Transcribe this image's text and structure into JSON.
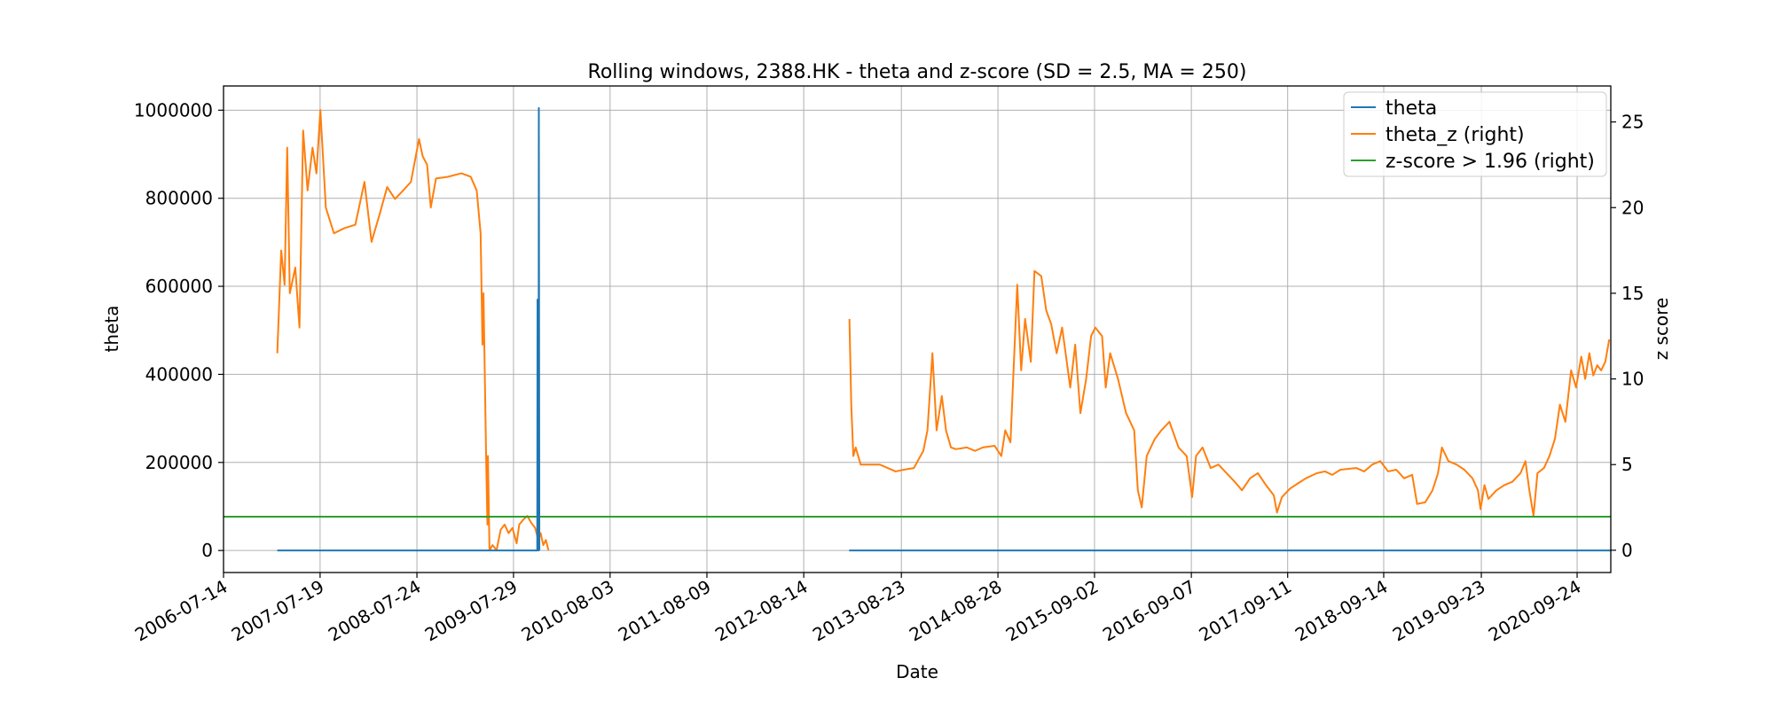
{
  "chart_data": {
    "type": "line",
    "title": "Rolling windows, 2388.HK - theta and z-score (SD = 2.5, MA = 250)",
    "xlabel": "Date",
    "ylabel": "theta",
    "y2label": "z score",
    "grid": true,
    "legend_position": "top-right",
    "xlim": [
      "2006-07-14",
      "2021-01-31"
    ],
    "ylim": [
      -50000,
      1055000
    ],
    "y2lim": [
      -1.3,
      27.1
    ],
    "x_ticks": [
      "2006-07-14",
      "2007-07-19",
      "2008-07-24",
      "2009-07-29",
      "2010-08-03",
      "2011-08-09",
      "2012-08-14",
      "2013-08-23",
      "2014-08-28",
      "2015-09-02",
      "2016-09-07",
      "2017-09-11",
      "2018-09-14",
      "2019-09-23",
      "2020-09-24"
    ],
    "y_ticks": [
      0,
      200000,
      400000,
      600000,
      800000,
      1000000
    ],
    "y2_ticks": [
      0,
      5,
      10,
      15,
      20,
      25
    ],
    "y_tick_labels": [
      "0",
      "200000",
      "400000",
      "600000",
      "800000",
      "1000000"
    ],
    "y2_tick_labels": [
      "0",
      "5",
      "10",
      "15",
      "20",
      "25"
    ],
    "series": [
      {
        "name": "theta",
        "axis": "left",
        "color": "#1f77b4",
        "segments": [
          [
            [
              "2007-02-05",
              0
            ],
            [
              "2009-10-28",
              0
            ],
            [
              "2009-10-29",
              570000
            ],
            [
              "2009-11-02",
              0
            ],
            [
              "2009-11-03",
              1005000
            ],
            [
              "2009-11-05",
              0
            ]
          ],
          [
            [
              "2013-02-04",
              0
            ],
            [
              "2021-01-31",
              0
            ]
          ]
        ]
      },
      {
        "name": "theta_z (right)",
        "axis": "right",
        "color": "#ff7f0e",
        "segments": [
          [
            [
              "2007-02-05",
              11.5
            ],
            [
              "2007-02-20",
              17.5
            ],
            [
              "2007-03-05",
              15.5
            ],
            [
              "2007-03-15",
              23.5
            ],
            [
              "2007-03-25",
              15
            ],
            [
              "2007-04-15",
              16.5
            ],
            [
              "2007-05-01",
              13
            ],
            [
              "2007-05-15",
              24.5
            ],
            [
              "2007-06-01",
              21
            ],
            [
              "2007-06-20",
              23.5
            ],
            [
              "2007-07-05",
              22
            ],
            [
              "2007-07-20",
              25.7
            ],
            [
              "2007-08-10",
              20
            ],
            [
              "2007-09-10",
              18.5
            ],
            [
              "2007-10-20",
              18.8
            ],
            [
              "2007-12-01",
              19
            ],
            [
              "2008-01-05",
              21.5
            ],
            [
              "2008-02-01",
              18
            ],
            [
              "2008-03-01",
              19.5
            ],
            [
              "2008-04-01",
              21.2
            ],
            [
              "2008-05-01",
              20.5
            ],
            [
              "2008-06-01",
              21
            ],
            [
              "2008-07-01",
              21.5
            ],
            [
              "2008-08-01",
              24
            ],
            [
              "2008-08-15",
              23
            ],
            [
              "2008-09-01",
              22.5
            ],
            [
              "2008-09-15",
              20
            ],
            [
              "2008-10-05",
              21.7
            ],
            [
              "2008-11-20",
              21.8
            ],
            [
              "2009-01-10",
              22
            ],
            [
              "2009-02-15",
              21.8
            ],
            [
              "2009-03-10",
              21
            ],
            [
              "2009-03-25",
              18.5
            ],
            [
              "2009-04-01",
              12
            ],
            [
              "2009-04-05",
              15
            ],
            [
              "2009-04-15",
              5.5
            ],
            [
              "2009-04-20",
              1.5
            ],
            [
              "2009-04-22",
              5.5
            ],
            [
              "2009-04-28",
              0
            ],
            [
              "2009-05-10",
              0.3
            ],
            [
              "2009-05-25",
              0
            ],
            [
              "2009-06-10",
              1.2
            ],
            [
              "2009-06-25",
              1.5
            ],
            [
              "2009-07-10",
              1
            ],
            [
              "2009-07-25",
              1.3
            ],
            [
              "2009-08-10",
              0.4
            ],
            [
              "2009-08-20",
              1.5
            ],
            [
              "2009-09-05",
              1.8
            ],
            [
              "2009-09-20",
              2
            ],
            [
              "2009-10-05",
              1.6
            ],
            [
              "2009-10-20",
              1.3
            ],
            [
              "2009-11-01",
              0.6
            ],
            [
              "2009-11-10",
              1
            ],
            [
              "2009-11-20",
              0.3
            ],
            [
              "2009-11-30",
              0.6
            ],
            [
              "2009-12-10",
              0
            ]
          ],
          [
            [
              "2013-02-05",
              13.5
            ],
            [
              "2013-02-12",
              8.5
            ],
            [
              "2013-02-20",
              5.5
            ],
            [
              "2013-03-01",
              6
            ],
            [
              "2013-03-20",
              5
            ],
            [
              "2013-04-20",
              5
            ],
            [
              "2013-06-01",
              5
            ],
            [
              "2013-08-01",
              4.6
            ],
            [
              "2013-09-01",
              4.7
            ],
            [
              "2013-10-10",
              4.8
            ],
            [
              "2013-11-15",
              5.8
            ],
            [
              "2013-12-01",
              7
            ],
            [
              "2013-12-20",
              11.5
            ],
            [
              "2014-01-05",
              7
            ],
            [
              "2014-01-25",
              9
            ],
            [
              "2014-02-10",
              7
            ],
            [
              "2014-03-01",
              6
            ],
            [
              "2014-03-20",
              5.9
            ],
            [
              "2014-05-01",
              6
            ],
            [
              "2014-06-01",
              5.8
            ],
            [
              "2014-07-01",
              6
            ],
            [
              "2014-08-15",
              6.1
            ],
            [
              "2014-09-10",
              5.5
            ],
            [
              "2014-09-25",
              7
            ],
            [
              "2014-10-15",
              6.3
            ],
            [
              "2014-11-10",
              15.5
            ],
            [
              "2014-11-25",
              10.5
            ],
            [
              "2014-12-10",
              13.5
            ],
            [
              "2015-01-01",
              11
            ],
            [
              "2015-01-15",
              16.3
            ],
            [
              "2015-02-10",
              16
            ],
            [
              "2015-03-01",
              14
            ],
            [
              "2015-03-20",
              13.2
            ],
            [
              "2015-04-10",
              11.5
            ],
            [
              "2015-05-01",
              13
            ],
            [
              "2015-06-01",
              9.5
            ],
            [
              "2015-06-20",
              12
            ],
            [
              "2015-07-10",
              8
            ],
            [
              "2015-08-01",
              10
            ],
            [
              "2015-08-20",
              12.5
            ],
            [
              "2015-09-05",
              13
            ],
            [
              "2015-10-01",
              12.5
            ],
            [
              "2015-10-15",
              9.5
            ],
            [
              "2015-11-01",
              11.5
            ],
            [
              "2015-12-01",
              10
            ],
            [
              "2016-01-01",
              8
            ],
            [
              "2016-02-01",
              7
            ],
            [
              "2016-02-15",
              3.5
            ],
            [
              "2016-03-01",
              2.5
            ],
            [
              "2016-03-20",
              5.5
            ],
            [
              "2016-04-20",
              6.5
            ],
            [
              "2016-05-15",
              7
            ],
            [
              "2016-06-15",
              7.5
            ],
            [
              "2016-07-20",
              6
            ],
            [
              "2016-08-20",
              5.5
            ],
            [
              "2016-09-10",
              3.1
            ],
            [
              "2016-09-25",
              5.5
            ],
            [
              "2016-10-20",
              6
            ],
            [
              "2016-11-20",
              4.8
            ],
            [
              "2016-12-20",
              5
            ],
            [
              "2017-01-20",
              4.5
            ],
            [
              "2017-02-20",
              4
            ],
            [
              "2017-03-20",
              3.5
            ],
            [
              "2017-04-20",
              4.2
            ],
            [
              "2017-05-20",
              4.5
            ],
            [
              "2017-06-20",
              3.8
            ],
            [
              "2017-07-20",
              3.2
            ],
            [
              "2017-08-01",
              2.2
            ],
            [
              "2017-08-20",
              3.1
            ],
            [
              "2017-09-20",
              3.6
            ],
            [
              "2017-10-20",
              3.9
            ],
            [
              "2017-11-20",
              4.2
            ],
            [
              "2018-01-01",
              4.5
            ],
            [
              "2018-02-01",
              4.6
            ],
            [
              "2018-03-01",
              4.4
            ],
            [
              "2018-04-01",
              4.7
            ],
            [
              "2018-06-01",
              4.8
            ],
            [
              "2018-07-01",
              4.6
            ],
            [
              "2018-08-01",
              5
            ],
            [
              "2018-09-01",
              5.2
            ],
            [
              "2018-10-01",
              4.6
            ],
            [
              "2018-11-01",
              4.7
            ],
            [
              "2018-12-01",
              4.2
            ],
            [
              "2019-01-01",
              4.4
            ],
            [
              "2019-01-20",
              2.7
            ],
            [
              "2019-02-20",
              2.8
            ],
            [
              "2019-03-20",
              3.5
            ],
            [
              "2019-04-10",
              4.5
            ],
            [
              "2019-04-25",
              6
            ],
            [
              "2019-05-20",
              5.2
            ],
            [
              "2019-06-20",
              5
            ],
            [
              "2019-07-20",
              4.7
            ],
            [
              "2019-08-20",
              4.2
            ],
            [
              "2019-09-10",
              3.5
            ],
            [
              "2019-09-20",
              2.4
            ],
            [
              "2019-10-05",
              3.8
            ],
            [
              "2019-10-20",
              3
            ],
            [
              "2019-11-20",
              3.5
            ],
            [
              "2019-12-20",
              3.8
            ],
            [
              "2020-01-20",
              4
            ],
            [
              "2020-02-20",
              4.5
            ],
            [
              "2020-03-10",
              5.2
            ],
            [
              "2020-03-25",
              3.5
            ],
            [
              "2020-04-10",
              2
            ],
            [
              "2020-04-25",
              4.5
            ],
            [
              "2020-05-20",
              4.8
            ],
            [
              "2020-06-10",
              5.5
            ],
            [
              "2020-07-01",
              6.5
            ],
            [
              "2020-07-20",
              8.5
            ],
            [
              "2020-08-10",
              7.5
            ],
            [
              "2020-09-01",
              10.5
            ],
            [
              "2020-09-20",
              9.5
            ],
            [
              "2020-10-10",
              11.3
            ],
            [
              "2020-10-25",
              10
            ],
            [
              "2020-11-10",
              11.5
            ],
            [
              "2020-11-25",
              10.2
            ],
            [
              "2020-12-10",
              10.8
            ],
            [
              "2020-12-25",
              10.5
            ],
            [
              "2021-01-10",
              11
            ],
            [
              "2021-01-25",
              12.3
            ]
          ]
        ]
      },
      {
        "name": "z-score > 1.96 (right)",
        "axis": "right",
        "color": "#2ca02c",
        "segments": [
          [
            [
              "2006-07-14",
              1.96
            ],
            [
              "2021-01-31",
              1.96
            ]
          ]
        ]
      }
    ]
  }
}
